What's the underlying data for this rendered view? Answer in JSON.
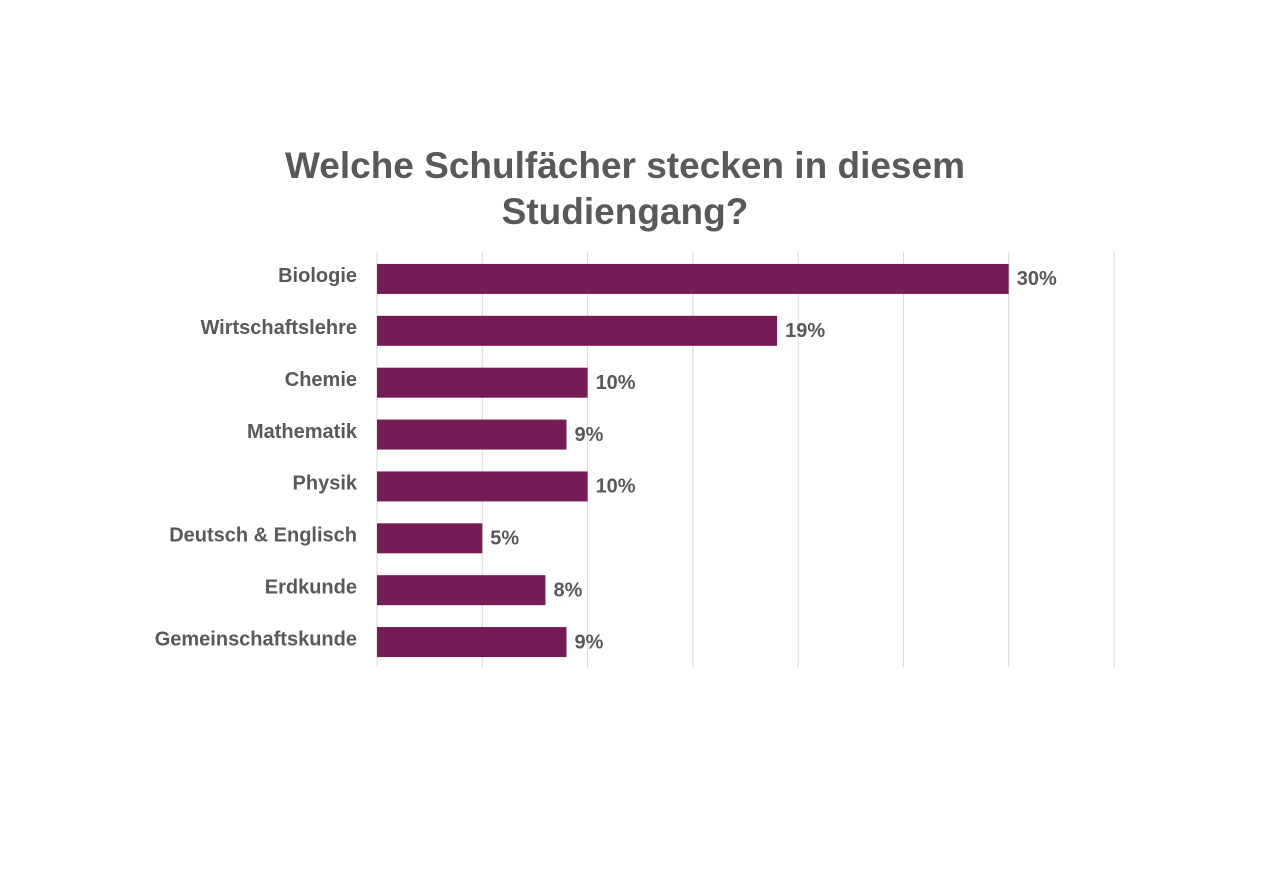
{
  "chart_data": {
    "type": "hbar",
    "title": "Welche Schulfächer stecken in diesem Studiengang?",
    "categories": [
      "Biologie",
      "Wirtschaftslehre",
      "Chemie",
      "Mathematik",
      "Physik",
      "Deutsch & Englisch",
      "Erdkunde",
      "Gemeinschaftskunde"
    ],
    "values": [
      30,
      19,
      10,
      9,
      10,
      5,
      8,
      9
    ],
    "value_labels": [
      "30%",
      "19%",
      "10%",
      "9%",
      "10%",
      "5%",
      "8%",
      "9%"
    ],
    "color": "#751c57",
    "xlim": [
      0,
      35
    ],
    "xticks": [
      0,
      5,
      10,
      15,
      20,
      25,
      30,
      35
    ],
    "grid": true
  }
}
